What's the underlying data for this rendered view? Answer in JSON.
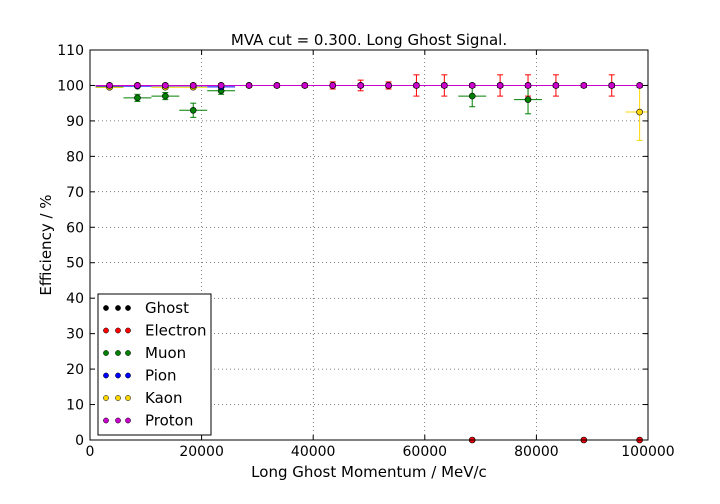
{
  "chart_data": {
    "type": "scatter",
    "title": "MVA cut = 0.300. Long Ghost Signal.",
    "xlabel": "Long Ghost Momentum / MeV/c",
    "ylabel": "Efficiency / %",
    "xlim": [
      0,
      100000
    ],
    "ylim": [
      0,
      110
    ],
    "xticks": [
      0,
      20000,
      40000,
      60000,
      80000,
      100000
    ],
    "xtick_labels": [
      "0",
      "20000",
      "40000",
      "60000",
      "80000",
      "100000"
    ],
    "yticks": [
      0,
      10,
      20,
      30,
      40,
      50,
      60,
      70,
      80,
      90,
      100,
      110
    ],
    "ytick_labels": [
      "0",
      "10",
      "20",
      "30",
      "40",
      "50",
      "60",
      "70",
      "80",
      "90",
      "100",
      "110"
    ],
    "grid": true,
    "legend_position": "lower-left",
    "series": [
      {
        "name": "Ghost",
        "color": "#000000",
        "points": [
          {
            "x": 3500,
            "y": 100,
            "xerr": 2500,
            "yerr": 0.3
          },
          {
            "x": 8500,
            "y": 100,
            "xerr": 2500,
            "yerr": 0.3
          },
          {
            "x": 13500,
            "y": 100,
            "xerr": 2500,
            "yerr": 0.3
          },
          {
            "x": 18500,
            "y": 100,
            "xerr": 2500,
            "yerr": 0.3
          },
          {
            "x": 23500,
            "y": 100,
            "xerr": 2500,
            "yerr": 0.3
          },
          {
            "x": 28500,
            "y": 100,
            "xerr": 2500,
            "yerr": 0.3
          },
          {
            "x": 33500,
            "y": 100,
            "xerr": 2500,
            "yerr": 0.3
          },
          {
            "x": 38500,
            "y": 100,
            "xerr": 2500,
            "yerr": 0.3
          },
          {
            "x": 43500,
            "y": 100,
            "xerr": 2500,
            "yerr": 0.3
          },
          {
            "x": 48500,
            "y": 100,
            "xerr": 2500,
            "yerr": 0.5
          },
          {
            "x": 53500,
            "y": 100,
            "xerr": 2500,
            "yerr": 0.5
          },
          {
            "x": 58500,
            "y": 100,
            "xerr": 2500,
            "yerr": 0.5
          },
          {
            "x": 63500,
            "y": 100,
            "xerr": 2500,
            "yerr": 0.5
          },
          {
            "x": 68500,
            "y": 100,
            "xerr": 2500,
            "yerr": 0.5
          },
          {
            "x": 73500,
            "y": 100,
            "xerr": 2500,
            "yerr": 0.5
          },
          {
            "x": 78500,
            "y": 100,
            "xerr": 2500,
            "yerr": 0.5
          },
          {
            "x": 83500,
            "y": 100,
            "xerr": 2500,
            "yerr": 0.5
          },
          {
            "x": 88500,
            "y": 100,
            "xerr": 2500,
            "yerr": 0.5
          },
          {
            "x": 93500,
            "y": 100,
            "xerr": 2500,
            "yerr": 0.5
          },
          {
            "x": 98500,
            "y": 100,
            "xerr": 2500,
            "yerr": 0.5
          }
        ]
      },
      {
        "name": "Electron",
        "color": "#ff0000",
        "points": [
          {
            "x": 3500,
            "y": 100,
            "xerr": 2500,
            "yerr": 0.5
          },
          {
            "x": 8500,
            "y": 100,
            "xerr": 2500,
            "yerr": 0.5
          },
          {
            "x": 13500,
            "y": 100,
            "xerr": 2500,
            "yerr": 0.5
          },
          {
            "x": 18500,
            "y": 100,
            "xerr": 2500,
            "yerr": 0.5
          },
          {
            "x": 23500,
            "y": 100,
            "xerr": 2500,
            "yerr": 0.5
          },
          {
            "x": 28500,
            "y": 100,
            "xerr": 2500,
            "yerr": 0.5
          },
          {
            "x": 33500,
            "y": 100,
            "xerr": 2500,
            "yerr": 0.5
          },
          {
            "x": 38500,
            "y": 100,
            "xerr": 2500,
            "yerr": 0.5
          },
          {
            "x": 43500,
            "y": 100,
            "xerr": 2500,
            "yerr": 1
          },
          {
            "x": 48500,
            "y": 100,
            "xerr": 2500,
            "yerr": 1.5
          },
          {
            "x": 53500,
            "y": 100,
            "xerr": 2500,
            "yerr": 1
          },
          {
            "x": 58500,
            "y": 100,
            "xerr": 2500,
            "yerr": 3
          },
          {
            "x": 63500,
            "y": 100,
            "xerr": 2500,
            "yerr": 3
          },
          {
            "x": 68500,
            "y": 0,
            "xerr": 2500,
            "yerr": 0
          },
          {
            "x": 73500,
            "y": 100,
            "xerr": 2500,
            "yerr": 3
          },
          {
            "x": 78500,
            "y": 100,
            "xerr": 2500,
            "yerr": 3
          },
          {
            "x": 83500,
            "y": 100,
            "xerr": 2500,
            "yerr": 3
          },
          {
            "x": 88500,
            "y": 0,
            "xerr": 2500,
            "yerr": 0
          },
          {
            "x": 93500,
            "y": 100,
            "xerr": 2500,
            "yerr": 3
          },
          {
            "x": 98500,
            "y": 0,
            "xerr": 2500,
            "yerr": 0
          }
        ]
      },
      {
        "name": "Muon",
        "color": "#008000",
        "points": [
          {
            "x": 3500,
            "y": 99.5,
            "xerr": 2500,
            "yerr": 0.5
          },
          {
            "x": 8500,
            "y": 96.5,
            "xerr": 2500,
            "yerr": 1
          },
          {
            "x": 13500,
            "y": 97,
            "xerr": 2500,
            "yerr": 1
          },
          {
            "x": 18500,
            "y": 93,
            "xerr": 2500,
            "yerr": 2
          },
          {
            "x": 23500,
            "y": 98.5,
            "xerr": 2500,
            "yerr": 1
          },
          {
            "x": 68500,
            "y": 97,
            "xerr": 2500,
            "yerr": 3
          },
          {
            "x": 78500,
            "y": 96,
            "xerr": 2500,
            "yerr": 4
          }
        ]
      },
      {
        "name": "Pion",
        "color": "#0000ff",
        "points": [
          {
            "x": 3500,
            "y": 99.8,
            "xerr": 2500,
            "yerr": 0.2
          },
          {
            "x": 8500,
            "y": 99.8,
            "xerr": 2500,
            "yerr": 0.2
          },
          {
            "x": 13500,
            "y": 99.6,
            "xerr": 2500,
            "yerr": 0.3
          },
          {
            "x": 18500,
            "y": 99.6,
            "xerr": 2500,
            "yerr": 0.3
          },
          {
            "x": 23500,
            "y": 99.6,
            "xerr": 2500,
            "yerr": 0.3
          }
        ]
      },
      {
        "name": "Kaon",
        "color": "#ffd700",
        "points": [
          {
            "x": 3500,
            "y": 99.5,
            "xerr": 2500,
            "yerr": 0.5
          },
          {
            "x": 13500,
            "y": 99.5,
            "xerr": 2500,
            "yerr": 0.5
          },
          {
            "x": 18500,
            "y": 99.5,
            "xerr": 2500,
            "yerr": 0.5
          },
          {
            "x": 98500,
            "y": 92.5,
            "xerr": 2500,
            "yerr": 8
          }
        ]
      },
      {
        "name": "Proton",
        "color": "#cc00cc",
        "points": [
          {
            "x": 3500,
            "y": 100,
            "xerr": 2500,
            "yerr": 0.3
          },
          {
            "x": 8500,
            "y": 100,
            "xerr": 2500,
            "yerr": 0.3
          },
          {
            "x": 13500,
            "y": 100,
            "xerr": 2500,
            "yerr": 0.3
          },
          {
            "x": 18500,
            "y": 100,
            "xerr": 2500,
            "yerr": 0.3
          },
          {
            "x": 23500,
            "y": 100,
            "xerr": 2500,
            "yerr": 0.3
          },
          {
            "x": 28500,
            "y": 100,
            "xerr": 2500,
            "yerr": 0.3
          },
          {
            "x": 33500,
            "y": 100,
            "xerr": 2500,
            "yerr": 0.3
          },
          {
            "x": 38500,
            "y": 100,
            "xerr": 2500,
            "yerr": 0.3
          },
          {
            "x": 43500,
            "y": 100,
            "xerr": 2500,
            "yerr": 0.3
          },
          {
            "x": 48500,
            "y": 100,
            "xerr": 2500,
            "yerr": 0.5
          },
          {
            "x": 53500,
            "y": 100,
            "xerr": 2500,
            "yerr": 0.5
          },
          {
            "x": 58500,
            "y": 100,
            "xerr": 2500,
            "yerr": 0.5
          },
          {
            "x": 63500,
            "y": 100,
            "xerr": 2500,
            "yerr": 0.5
          },
          {
            "x": 68500,
            "y": 100,
            "xerr": 2500,
            "yerr": 0.5
          },
          {
            "x": 73500,
            "y": 100,
            "xerr": 2500,
            "yerr": 0.5
          },
          {
            "x": 78500,
            "y": 100,
            "xerr": 2500,
            "yerr": 0.5
          },
          {
            "x": 83500,
            "y": 100,
            "xerr": 2500,
            "yerr": 0.5
          },
          {
            "x": 88500,
            "y": 100,
            "xerr": 2500,
            "yerr": 0.5
          },
          {
            "x": 93500,
            "y": 100,
            "xerr": 2500,
            "yerr": 0.5
          },
          {
            "x": 98500,
            "y": 100,
            "xerr": 2500,
            "yerr": 0.5
          }
        ]
      }
    ]
  }
}
